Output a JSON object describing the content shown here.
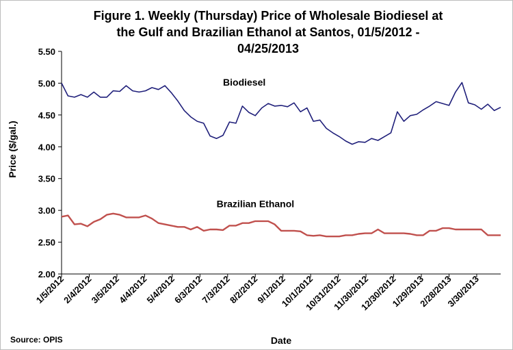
{
  "chart_data": {
    "type": "line",
    "title_lines": [
      "Figure 1. Weekly (Thursday) Price of Wholesale Biodiesel at",
      "the Gulf and Brazilian Ethanol at Santos, 01/5/2012 -",
      "04/25/2013"
    ],
    "xlabel": "Date",
    "ylabel": "Price ($/gal.)",
    "source": "Source: OPIS",
    "ylim": [
      2.0,
      5.5
    ],
    "y_ticks": [
      "2.00",
      "2.50",
      "3.00",
      "3.50",
      "4.00",
      "4.50",
      "5.00",
      "5.50"
    ],
    "x_tick_labels": [
      "1/5/2012",
      "2/4/2012",
      "3/5/2012",
      "4/4/2012",
      "5/4/2012",
      "6/3/2012",
      "7/3/2012",
      "8/2/2012",
      "9/1/2012",
      "10/1/2012",
      "10/31/2012",
      "11/30/2012",
      "12/30/2012",
      "1/29/2013",
      "2/28/2013",
      "3/30/2013"
    ],
    "grid": false,
    "legend": "none",
    "x": [
      "1/5/2012",
      "1/12/2012",
      "1/19/2012",
      "1/26/2012",
      "2/2/2012",
      "2/9/2012",
      "2/16/2012",
      "2/23/2012",
      "3/1/2012",
      "3/8/2012",
      "3/15/2012",
      "3/22/2012",
      "3/29/2012",
      "4/5/2012",
      "4/12/2012",
      "4/19/2012",
      "4/26/2012",
      "5/3/2012",
      "5/10/2012",
      "5/17/2012",
      "5/24/2012",
      "5/31/2012",
      "6/7/2012",
      "6/14/2012",
      "6/21/2012",
      "6/28/2012",
      "7/5/2012",
      "7/12/2012",
      "7/19/2012",
      "7/26/2012",
      "8/2/2012",
      "8/9/2012",
      "8/16/2012",
      "8/23/2012",
      "8/30/2012",
      "9/6/2012",
      "9/13/2012",
      "9/20/2012",
      "9/27/2012",
      "10/4/2012",
      "10/11/2012",
      "10/18/2012",
      "10/25/2012",
      "11/1/2012",
      "11/8/2012",
      "11/15/2012",
      "11/22/2012",
      "11/29/2012",
      "12/6/2012",
      "12/13/2012",
      "12/20/2012",
      "12/27/2012",
      "1/3/2013",
      "1/10/2013",
      "1/17/2013",
      "1/24/2013",
      "1/31/2013",
      "2/7/2013",
      "2/14/2013",
      "2/21/2013",
      "2/28/2013",
      "3/7/2013",
      "3/14/2013",
      "3/21/2013",
      "3/28/2013",
      "4/4/2013",
      "4/11/2013",
      "4/18/2013",
      "4/25/2013"
    ],
    "series": [
      {
        "name": "Biodiesel",
        "color": "#1f1f7a",
        "values": [
          5.0,
          4.8,
          4.78,
          4.82,
          4.78,
          4.86,
          4.78,
          4.78,
          4.88,
          4.87,
          4.96,
          4.88,
          4.86,
          4.88,
          4.93,
          4.9,
          4.96,
          4.85,
          4.72,
          4.57,
          4.47,
          4.4,
          4.37,
          4.17,
          4.13,
          4.18,
          4.39,
          4.37,
          4.64,
          4.54,
          4.49,
          4.61,
          4.68,
          4.64,
          4.65,
          4.63,
          4.69,
          4.55,
          4.61,
          4.4,
          4.42,
          4.29,
          4.22,
          4.16,
          4.09,
          4.04,
          4.08,
          4.07,
          4.13,
          4.1,
          4.16,
          4.22,
          4.55,
          4.4,
          4.49,
          4.51,
          4.58,
          4.64,
          4.71,
          4.68,
          4.65,
          4.86,
          5.01,
          4.69,
          4.66,
          4.59,
          4.67,
          4.57,
          4.62
        ]
      },
      {
        "name": "Brazilian Ethanol",
        "color": "#c0504d",
        "values": [
          2.9,
          2.92,
          2.78,
          2.79,
          2.75,
          2.82,
          2.86,
          2.93,
          2.95,
          2.93,
          2.89,
          2.89,
          2.89,
          2.92,
          2.87,
          2.8,
          2.78,
          2.76,
          2.74,
          2.74,
          2.7,
          2.74,
          2.68,
          2.7,
          2.7,
          2.69,
          2.76,
          2.76,
          2.8,
          2.8,
          2.83,
          2.83,
          2.83,
          2.78,
          2.68,
          2.68,
          2.68,
          2.67,
          2.61,
          2.6,
          2.61,
          2.59,
          2.59,
          2.59,
          2.61,
          2.61,
          2.63,
          2.64,
          2.64,
          2.7,
          2.64,
          2.64,
          2.64,
          2.64,
          2.63,
          2.61,
          2.61,
          2.68,
          2.68,
          2.72,
          2.72,
          2.7,
          2.7,
          2.7,
          2.7,
          2.7,
          2.61,
          2.61,
          2.61
        ]
      }
    ],
    "annotations": [
      {
        "text": "Biodiesel",
        "x": "6/28/2012",
        "y": 4.96
      },
      {
        "text": "Brazilian Ethanol",
        "x": "6/21/2012",
        "y": 3.05
      }
    ]
  }
}
